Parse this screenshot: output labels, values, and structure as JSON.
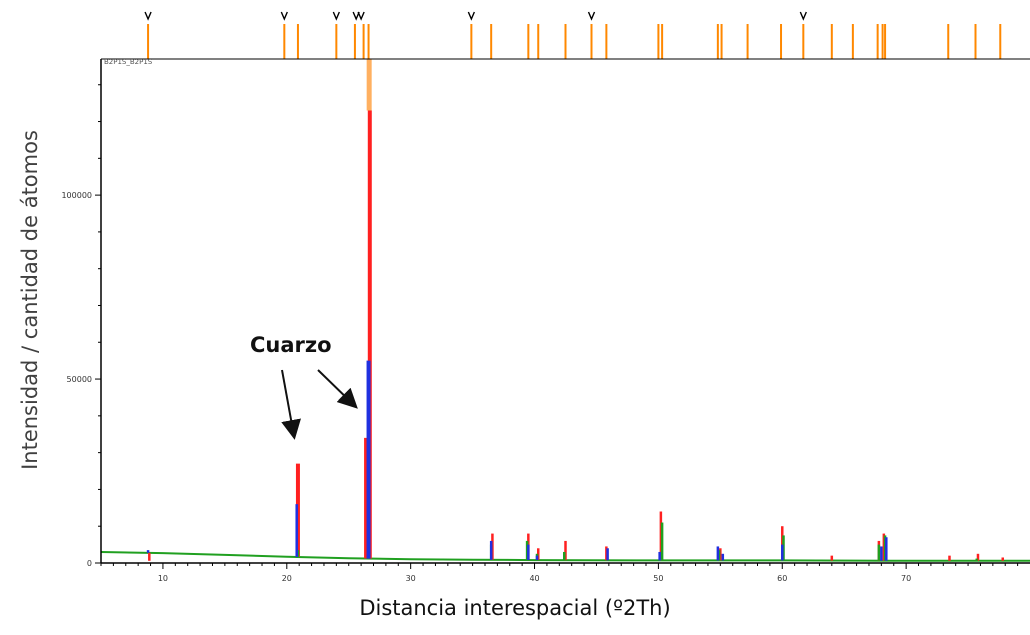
{
  "chart_data": {
    "type": "line",
    "sample_label": "B2P1S_B2P1S",
    "xlabel": "Distancia interespacial (º2Th)",
    "ylabel": "Intensidad / cantidad de átomos",
    "xlim": [
      5,
      80
    ],
    "ylim": [
      0,
      137000
    ],
    "x_ticks": [
      10,
      20,
      30,
      40,
      50,
      60,
      70
    ],
    "y_ticks": [
      0,
      50000,
      100000
    ],
    "annotation": {
      "text": "Cuarzo",
      "points_to": [
        20.9,
        26.6
      ]
    },
    "background": {
      "x": [
        5,
        10,
        15,
        20,
        25,
        30,
        35,
        40,
        50,
        60,
        70,
        80
      ],
      "y": [
        3000,
        2700,
        2200,
        1700,
        1300,
        1000,
        900,
        800,
        700,
        700,
        600,
        600
      ]
    },
    "series": [
      {
        "color": "#ff2020",
        "peaks": [
          [
            8.9,
            600
          ],
          [
            20.9,
            27000
          ],
          [
            26.4,
            34000
          ],
          [
            26.7,
            123000
          ],
          [
            36.6,
            8000
          ],
          [
            39.5,
            8000
          ],
          [
            40.3,
            4000
          ],
          [
            42.5,
            6000
          ],
          [
            45.8,
            4500
          ],
          [
            50.2,
            14000
          ],
          [
            55.0,
            4000
          ],
          [
            60.0,
            10000
          ],
          [
            64.0,
            2000
          ],
          [
            67.8,
            6000
          ],
          [
            68.2,
            8000
          ],
          [
            73.5,
            2000
          ],
          [
            75.8,
            2500
          ],
          [
            77.8,
            1500
          ]
        ]
      },
      {
        "color": "#20a020",
        "peaks": [
          [
            20.9,
            3500
          ],
          [
            26.6,
            8000
          ],
          [
            36.5,
            5000
          ],
          [
            39.4,
            6000
          ],
          [
            40.2,
            2500
          ],
          [
            42.4,
            3000
          ],
          [
            50.3,
            11000
          ],
          [
            54.9,
            3500
          ],
          [
            60.1,
            7500
          ],
          [
            67.8,
            5000
          ],
          [
            68.3,
            7500
          ],
          [
            75.7,
            1200
          ]
        ]
      },
      {
        "color": "#2030e0",
        "peaks": [
          [
            8.8,
            3500
          ],
          [
            20.8,
            16000
          ],
          [
            26.6,
            55000
          ],
          [
            36.5,
            6000
          ],
          [
            39.5,
            5000
          ],
          [
            40.2,
            2000
          ],
          [
            45.9,
            4000
          ],
          [
            50.1,
            3000
          ],
          [
            54.8,
            4500
          ],
          [
            55.2,
            2500
          ],
          [
            60.0,
            5000
          ],
          [
            68.0,
            4500
          ],
          [
            68.4,
            7000
          ]
        ]
      }
    ],
    "reference_markers": [
      8.8,
      19.8,
      20.9,
      24.0,
      25.5,
      26.2,
      26.6,
      34.9,
      36.5,
      39.5,
      40.3,
      42.5,
      44.6,
      45.8,
      50.0,
      50.3,
      54.8,
      55.1,
      57.2,
      59.9,
      61.7,
      64.0,
      65.7,
      67.7,
      68.1,
      68.3,
      73.4,
      75.6,
      77.6
    ],
    "ref_mark_x": [
      8.8,
      19.8,
      24.0,
      25.6,
      26.0,
      34.9,
      44.6,
      61.7
    ],
    "colors": {
      "axis": "#000000",
      "reference": "#ff8800",
      "pattern_top": "#ffb060",
      "background_line": "#20a020"
    }
  }
}
